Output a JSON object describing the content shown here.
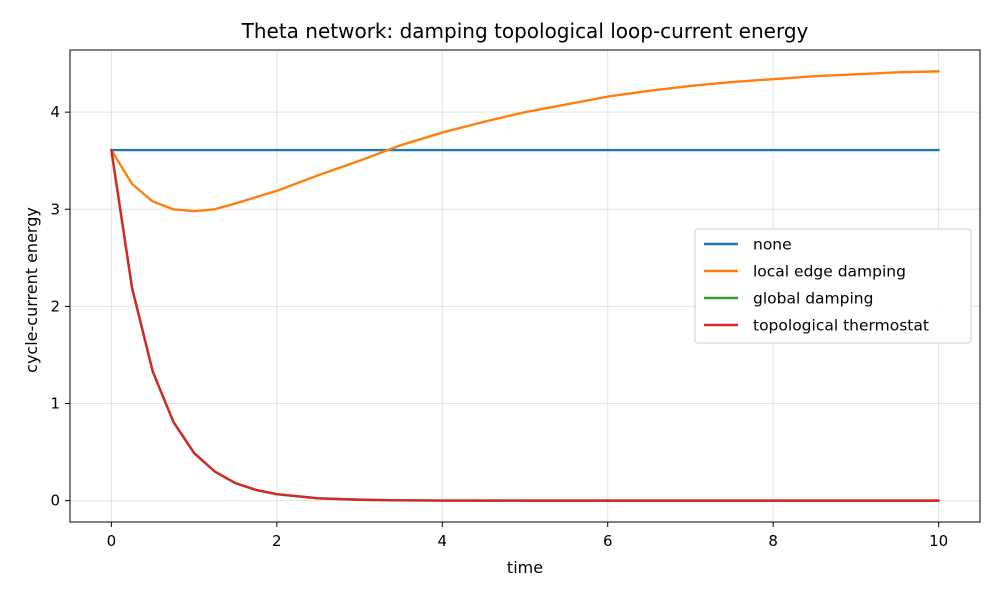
{
  "chart_data": {
    "type": "line",
    "title": "Theta network: damping topological loop-current energy",
    "xlabel": "time",
    "ylabel": "cycle-current energy",
    "xlim": [
      -0.5,
      10.5
    ],
    "ylim": [
      -0.22,
      4.64
    ],
    "xticks": [
      0,
      2,
      4,
      6,
      8,
      10
    ],
    "yticks": [
      0,
      1,
      2,
      3,
      4
    ],
    "grid": true,
    "legend_position": "center-right",
    "series": [
      {
        "name": "none",
        "color": "#1f77b4",
        "x": [
          0,
          10
        ],
        "y": [
          3.61,
          3.61
        ]
      },
      {
        "name": "local edge damping",
        "color": "#ff7f0e",
        "x": [
          0,
          0.25,
          0.5,
          0.75,
          1.0,
          1.25,
          1.5,
          2.0,
          2.5,
          3.0,
          3.5,
          4.0,
          4.5,
          5.0,
          5.5,
          6.0,
          6.5,
          7.0,
          7.5,
          8.0,
          8.5,
          9.0,
          9.5,
          10.0
        ],
        "y": [
          3.61,
          3.26,
          3.08,
          3.0,
          2.98,
          3.0,
          3.06,
          3.19,
          3.35,
          3.5,
          3.66,
          3.79,
          3.9,
          4.0,
          4.08,
          4.16,
          4.22,
          4.27,
          4.31,
          4.34,
          4.37,
          4.39,
          4.41,
          4.42
        ]
      },
      {
        "name": "global damping",
        "color": "#2ca02c",
        "x": [
          0,
          0.25,
          0.5,
          0.75,
          1.0,
          1.25,
          1.5,
          1.75,
          2.0,
          2.5,
          3.0,
          3.5,
          4.0,
          5.0,
          6.0,
          7.0,
          8.0,
          9.0,
          10.0
        ],
        "y": [
          3.61,
          2.19,
          1.33,
          0.81,
          0.49,
          0.3,
          0.18,
          0.11,
          0.066,
          0.024,
          0.009,
          0.003,
          0.001,
          0.0,
          0.0,
          0.0,
          0.0,
          0.0,
          0.0
        ]
      },
      {
        "name": "topological thermostat",
        "color": "#d62728",
        "x": [
          0,
          0.25,
          0.5,
          0.75,
          1.0,
          1.25,
          1.5,
          1.75,
          2.0,
          2.5,
          3.0,
          3.5,
          4.0,
          5.0,
          6.0,
          7.0,
          8.0,
          9.0,
          10.0
        ],
        "y": [
          3.61,
          2.19,
          1.33,
          0.81,
          0.49,
          0.3,
          0.18,
          0.11,
          0.066,
          0.024,
          0.009,
          0.003,
          0.001,
          0.0,
          0.0,
          0.0,
          0.0,
          0.0,
          0.0
        ]
      }
    ]
  }
}
